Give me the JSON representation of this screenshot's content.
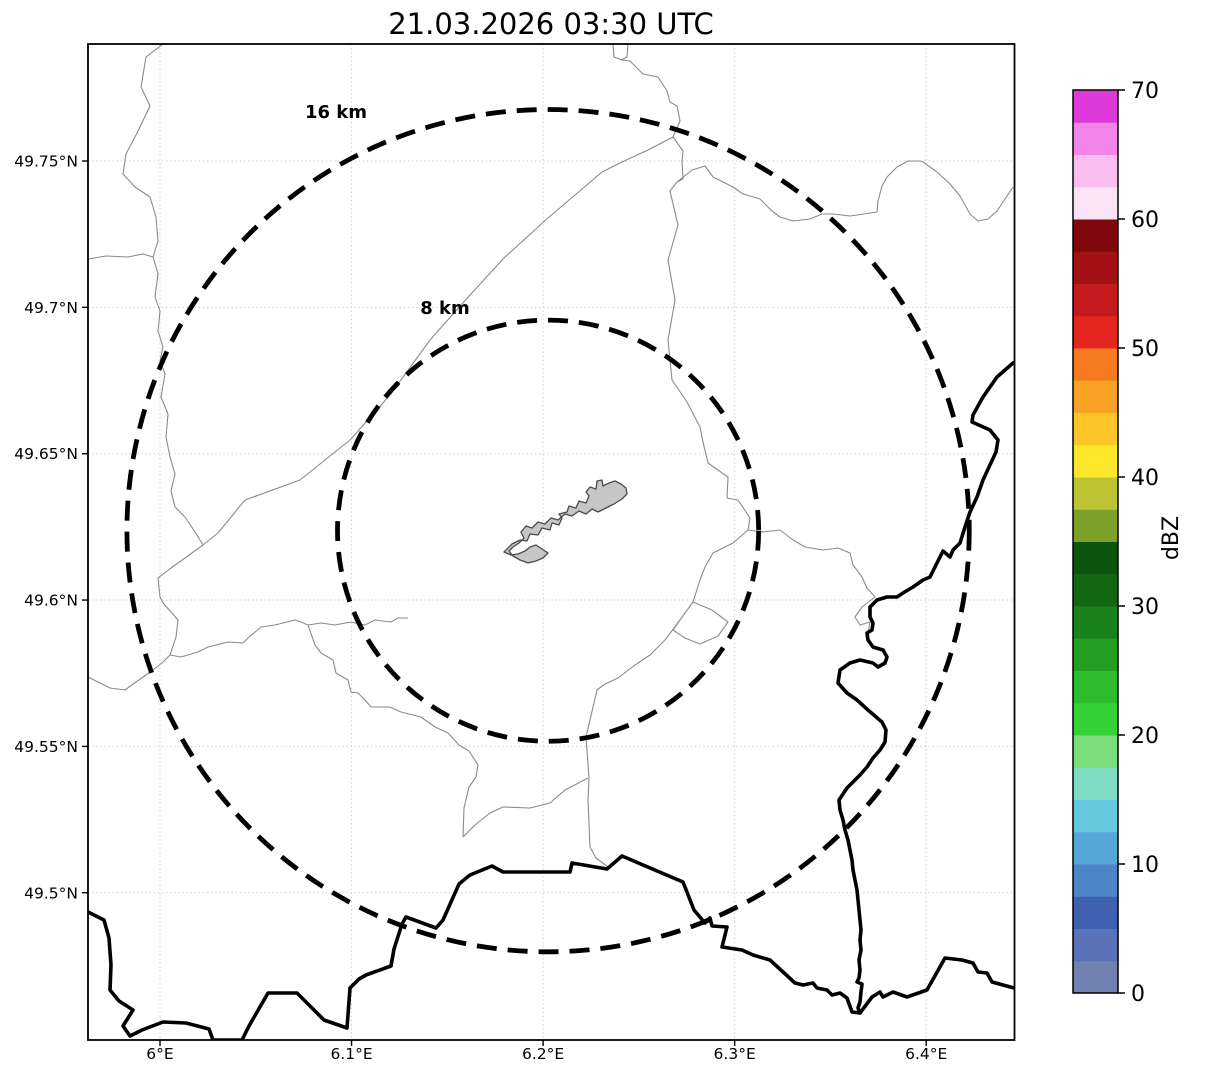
{
  "title": "21.03.2026 03:30 UTC",
  "map": {
    "x_ticks": [
      {
        "label": "6°E",
        "lon": 6.0
      },
      {
        "label": "6.1°E",
        "lon": 6.1
      },
      {
        "label": "6.2°E",
        "lon": 6.2
      },
      {
        "label": "6.3°E",
        "lon": 6.3
      },
      {
        "label": "6.4°E",
        "lon": 6.4
      }
    ],
    "y_ticks": [
      {
        "label": "49.75°N",
        "lat": 49.75
      },
      {
        "label": "49.7°N",
        "lat": 49.7
      },
      {
        "label": "49.65°N",
        "lat": 49.65
      },
      {
        "label": "49.6°N",
        "lat": 49.6
      },
      {
        "label": "49.55°N",
        "lat": 49.55
      },
      {
        "label": "49.5°N",
        "lat": 49.5
      }
    ],
    "radar_center": {
      "lon": 6.2026,
      "lat": 49.6237
    },
    "range_rings": [
      {
        "label": "16 km",
        "radius_km": 16
      },
      {
        "label": "8 km",
        "radius_km": 8
      }
    ],
    "colors": {
      "grid": "#cfcfcf",
      "admin_line": "#8a8a8a",
      "country_line": "#000000",
      "ring_line": "#000000",
      "city_fill": "#c6c6c6",
      "city_stroke": "#4a4a4a"
    }
  },
  "colorbar": {
    "label": "dBZ",
    "min": 0,
    "max": 70,
    "ticks": [
      0,
      10,
      20,
      30,
      40,
      50,
      60,
      70
    ],
    "colors_bottom_to_top": [
      "#7081b2",
      "#5a73b8",
      "#3f62b0",
      "#4d85c6",
      "#58a5d8",
      "#65c9de",
      "#7fdcc4",
      "#7cdd7c",
      "#35d235",
      "#2cbc2c",
      "#23a023",
      "#1b821b",
      "#136713",
      "#0d550d",
      "#7ca028",
      "#bcc433",
      "#fde82c",
      "#fcc629",
      "#faa226",
      "#f67b20",
      "#e42520",
      "#c41a1d",
      "#a31016",
      "#7f070c",
      "#fce4f8",
      "#f9bdf0",
      "#f285e8",
      "#de3ada"
    ]
  },
  "geometry": {
    "country_borders": [
      "88,912 104,920 109,938 111,965 110,990 119,1001 133,1010 123,1026 130,1036 142,1030 163,1022 186,1023 209,1029 213,1040 242,1040 249,1026 268,993 297,993 309,1005 324,1020 347,1028 350,988 359,979 366,975 391,966 394,949 402,924 406,917 436,928 443,920 459,884 470,875 492,866 503,872 550,872 570,872 572,863 607,869 622,856 683,882 694,910 705,923 710,918 712,926 727,927 722,947 742,950 753,955 770,960 795,983 803,985 813,983 817,988 827,990 832,995 840,993 847,998 852,1012 860,1013 872,997 880,992 883,997 893,992 907,997 927,990 945,958 962,960 973,963 978,972 987,973 992,982 1003,985 1014,988",
      "1013,363 997,377 983,397 973,415 972,422 990,430 998,440 996,452 983,480 977,497 970,512 965,527 960,543 953,550 950,557 943,551 937,563 930,577 923,580 913,587 903,593 897,597 887,597 877,600 870,607 870,617 873,623 872,630 867,633 868,640 873,647 883,650 887,657 885,663 878,667 873,663 860,660 850,663 840,670 838,683 847,693 857,700 868,710 882,722 886,730 885,742 880,750 873,758 867,767 860,775 853,782 847,788 839,800 840,810 843,820 845,830 848,840 850,850 852,860 853,870 855,880 857,890 858,900 859,910 860,920 861,930 860,940 861,950 859,960 860,970 859,978 857,982 862,984 861,992 860,1002 858,1008 860,1013"
    ],
    "admin_boundaries": [
      "163,44 146,57 141,87 150,106 138,131 126,154 123,174 135,187 150,197 156,217 158,241 153,257 158,274 155,297 160,311 158,331 163,347 160,361 165,374 161,397 168,414 166,437 170,457 175,474 171,491 175,507 185,517 195,532 203,545",
      "673,137 648,150 620,163 602,172 548,218 504,258 470,295 430,340 390,395 350,440 300,480 245,500 218,533 203,545 185,558 171,568 158,578 160,597 163,603 178,620 176,637 170,655",
      "88,259 106,256 128,257 143,254 153,257",
      "88,677 98,682 110,688 125,690 136,682 153,670 163,662 170,655 181,657 198,652 208,647 228,642 243,643 248,638 261,627 275,625 295,620 301,622 308,625 321,623 335,625 351,622 365,625 375,620 391,622 398,618 408,618",
      "308,625 315,645 321,653 333,660 336,673 348,680 351,692 358,693 365,700 371,707 390,707 401,712 421,717 435,727 448,733 459,745 469,751 478,765 476,777 469,787 464,808 463,837",
      "588,778 565,790 550,803 530,808 503,807 490,813 475,825 463,837",
      "748,530 733,543 713,553 705,567 700,580 693,602 680,620 665,640 650,655 635,665 618,678 605,684 597,690 586,737 589,778 588,800 590,847 596,858 608,867",
      "693,602 712,610 728,622 718,636 700,644 685,638 673,630 680,620",
      "673,137 683,151 682,162 683,179 677,182 670,191 678,225 668,260 675,300 668,340 672,380 687,402 700,427 703,442 708,463 728,477 727,498 738,500 750,518 748,530",
      "613,44 614,57 622,60 630,61 643,74 658,77 667,91 670,102 677,106 680,121 673,137",
      "628,44 627,57 621,60",
      "677,182 692,170 705,166 713,177 733,187 743,194 760,199 772,211 780,217 793,221 810,219 822,214 833,214 850,216 877,212 878,201 882,186 887,177 897,167 908,161 920,161 923,162 937,172 950,184 960,196 970,214 978,221 988,219 997,211 1005,199 1013,187",
      "748,530 763,532 780,530 793,540 805,547 823,550 838,548 850,553 853,565 862,577 867,588 875,597 862,607 855,617 860,625 870,622 868,633"
    ],
    "city_area": "504,552 512,544 520,540 527,541 530,534 538,535 542,528 550,530 552,523 559,525 562,518 559,514 567,512 569,506 576,508 579,501 586,503 589,496 586,492 590,487 596,489 597,481 602,480 603,486 609,483 615,481 621,484 626,488 627,494 622,499 614,504 606,508 598,512 592,509 586,514 579,511 572,516 565,514 558,520 551,518 545,524 538,522 532,528 526,526 521,532 524,538 519,543 513,547 509,551 513,556 520,560 528,563 536,561 543,558 548,553 542,549 536,545 530,547 525,551 518,554 511,555"
  }
}
